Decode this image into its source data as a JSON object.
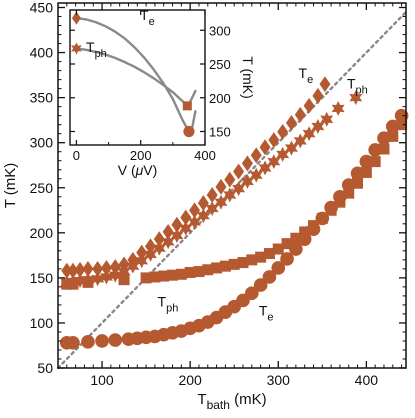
{
  "chart_data": [
    {
      "type": "scatter",
      "xlabel_main": "T",
      "xlabel_sub": "bath",
      "xlabel_unit": " (mK)",
      "ylabel": "T (mK)",
      "xlim": [
        50,
        445
      ],
      "ylim": [
        50,
        455
      ],
      "xticks": [
        "100",
        "200",
        "300",
        "400"
      ],
      "yticks": [
        "50",
        "100",
        "150",
        "200",
        "250",
        "300",
        "350",
        "400",
        "450"
      ],
      "grid": false,
      "reference_line": {
        "style": "dotted",
        "color": "#888888",
        "x": [
          50,
          445
        ],
        "y": [
          50,
          445
        ]
      },
      "series": [
        {
          "marker": "diamond",
          "color": "#b55a30",
          "label_main": "T",
          "label_sub": "e",
          "label_data_pos": [
            323,
            372
          ],
          "x": [
            60,
            67,
            75,
            84,
            95,
            105,
            115,
            125,
            135,
            145,
            155,
            165,
            175,
            185,
            195,
            205,
            215,
            225,
            235,
            245,
            255,
            265,
            275,
            285,
            295,
            305,
            315,
            325,
            335,
            345,
            353
          ],
          "y": [
            158,
            158,
            159,
            160,
            160,
            161,
            162,
            165,
            170,
            178,
            185,
            193,
            201,
            209,
            217,
            225,
            233,
            242,
            251,
            259,
            268,
            277,
            286,
            295,
            303,
            312,
            322,
            331,
            341,
            352,
            365
          ]
        },
        {
          "marker": "star",
          "color": "#b55a30",
          "label_main": "T",
          "label_sub": "ph",
          "label_data_pos": [
            378,
            360
          ],
          "x": [
            60,
            67,
            75,
            84,
            95,
            105,
            115,
            125,
            135,
            145,
            155,
            165,
            175,
            185,
            195,
            205,
            215,
            225,
            235,
            245,
            255,
            265,
            275,
            285,
            295,
            305,
            315,
            325,
            335,
            345,
            355,
            368,
            388
          ],
          "y": [
            145,
            146,
            147,
            148,
            149,
            151,
            153,
            157,
            163,
            169,
            176,
            183,
            190,
            197,
            205,
            212,
            219,
            227,
            234,
            242,
            249,
            257,
            264,
            272,
            279,
            287,
            294,
            302,
            310,
            318,
            326,
            338,
            350
          ]
        },
        {
          "marker": "square",
          "color": "#b55a30",
          "label_main": "T",
          "label_sub": "ph",
          "label_data_pos": [
            163,
            118
          ],
          "x": [
            60,
            67,
            84,
            125,
            150,
            160,
            170,
            180,
            190,
            200,
            210,
            220,
            230,
            240,
            250,
            260,
            270,
            280,
            290,
            300,
            310,
            320,
            330,
            340,
            350,
            360,
            370,
            380,
            390,
            400,
            410,
            420,
            430,
            440
          ],
          "y": [
            143,
            143,
            145,
            148,
            150,
            151,
            152,
            153,
            154,
            156,
            157,
            159,
            161,
            163,
            165,
            167,
            170,
            173,
            177,
            182,
            188,
            194,
            201,
            208,
            216,
            225,
            234,
            244,
            255,
            267,
            279,
            293,
            307,
            320
          ]
        },
        {
          "marker": "circle",
          "color": "#b55a30",
          "label_main": "T",
          "label_sub": "e",
          "label_data_pos": [
            278,
            108
          ],
          "x": [
            60,
            67,
            84,
            100,
            115,
            130,
            140,
            150,
            160,
            170,
            180,
            190,
            200,
            210,
            220,
            230,
            240,
            250,
            260,
            270,
            280,
            290,
            300,
            310,
            320,
            330,
            340,
            350,
            360,
            370,
            380,
            390,
            400,
            410,
            420,
            430,
            440
          ],
          "y": [
            78,
            78,
            79,
            80,
            81,
            82,
            83,
            84,
            85,
            87,
            89,
            91,
            94,
            97,
            101,
            106,
            112,
            118,
            125,
            133,
            142,
            151,
            161,
            171,
            182,
            193,
            204,
            216,
            228,
            240,
            253,
            266,
            279,
            292,
            305,
            318,
            330
          ]
        }
      ]
    },
    {
      "type": "line",
      "xlabel_main": "V (",
      "xlabel_greek": "μ",
      "xlabel_unit": "V)",
      "ylabel": "T (mK)",
      "xlim": [
        -20,
        400
      ],
      "ylim": [
        130,
        330
      ],
      "xticks": [
        "0",
        "200",
        "400"
      ],
      "yticks": [
        "150",
        "200",
        "250",
        "300"
      ],
      "series": [
        {
          "label_main": "T",
          "label_sub": "e",
          "color": "#8a8a8a",
          "x": [
            0,
            30,
            60,
            90,
            120,
            150,
            180,
            210,
            240,
            270,
            300,
            330,
            350,
            360,
            370
          ],
          "y": [
            318,
            316,
            312,
            306,
            298,
            288,
            275,
            260,
            242,
            222,
            198,
            167,
            150,
            155,
            180
          ],
          "end_markers": [
            {
              "x": 0,
              "y": 318,
              "marker": "diamond"
            },
            {
              "x": 350,
              "y": 150,
              "marker": "circle"
            }
          ]
        },
        {
          "label_main": "T",
          "label_sub": "ph",
          "color": "#8a8a8a",
          "x": [
            0,
            30,
            60,
            90,
            120,
            150,
            180,
            210,
            240,
            270,
            300,
            330,
            345,
            355,
            370
          ],
          "y": [
            273,
            271,
            268,
            264,
            259,
            253,
            246,
            238,
            229,
            219,
            208,
            195,
            188,
            195,
            210
          ],
          "end_markers": [
            {
              "x": 0,
              "y": 273,
              "marker": "star"
            },
            {
              "x": 345,
              "y": 188,
              "marker": "square"
            }
          ]
        }
      ]
    }
  ]
}
